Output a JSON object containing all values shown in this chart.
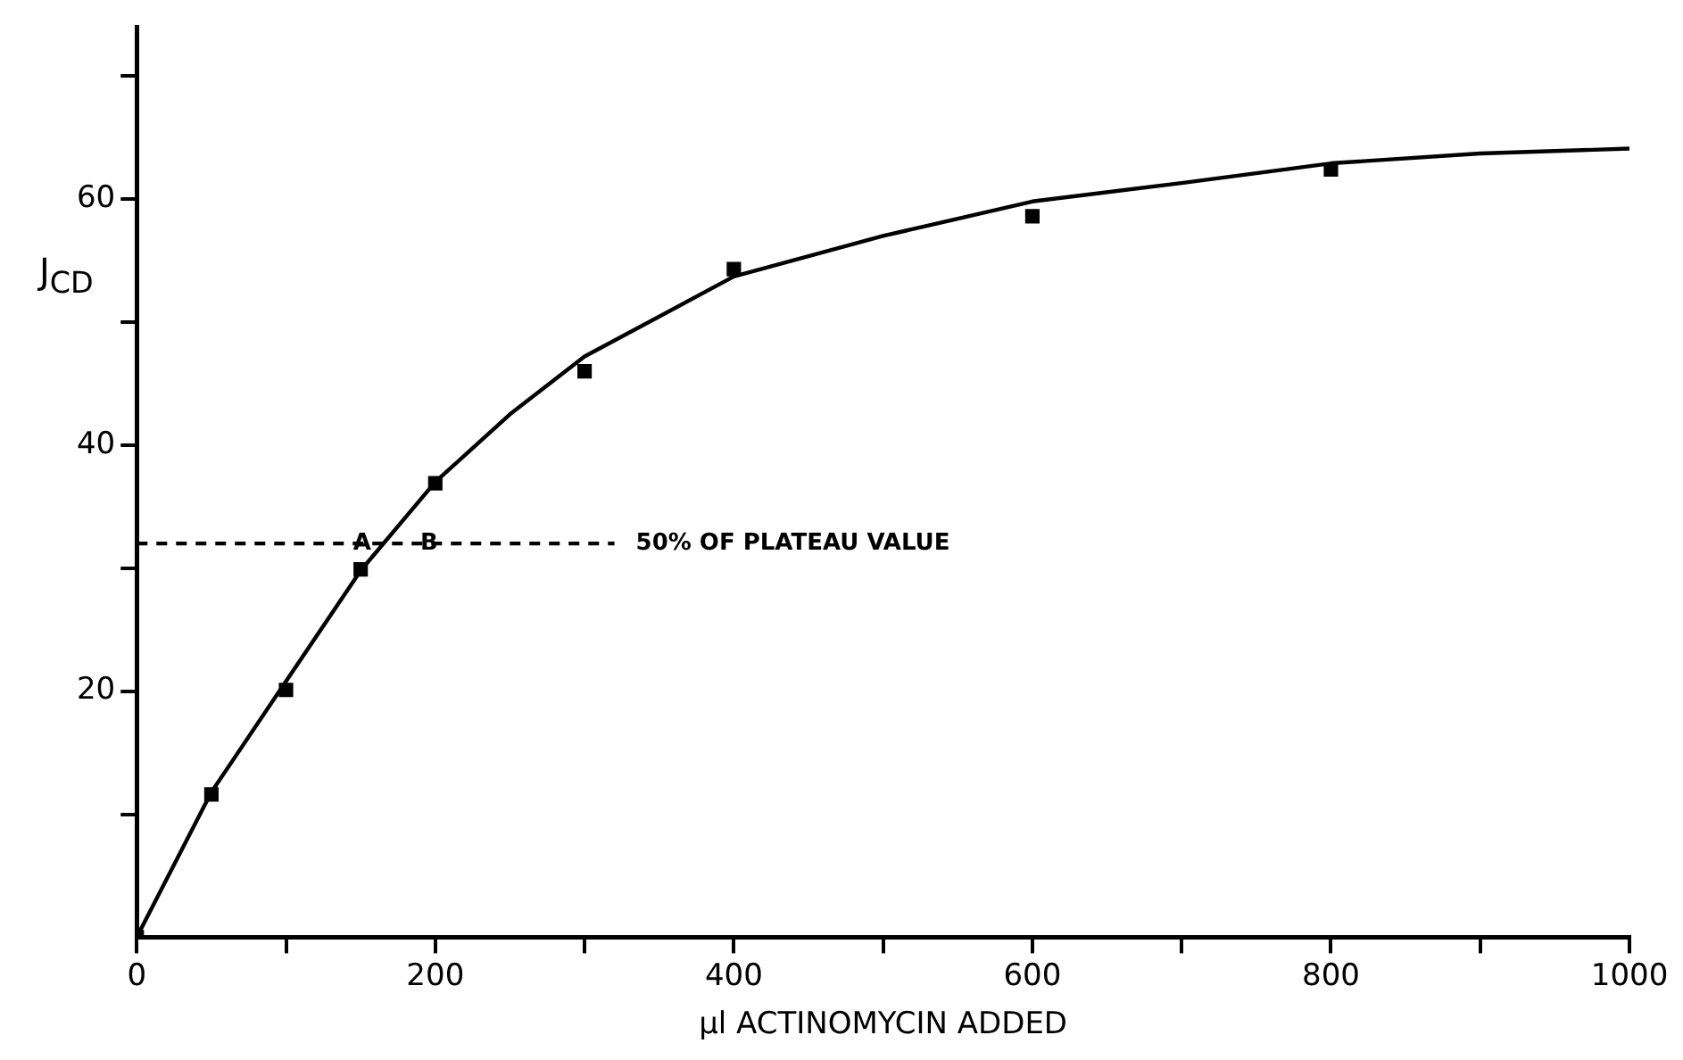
{
  "chart_data": {
    "type": "scatter",
    "xlabel": "µl ACTINOMYCIN ADDED",
    "ylabel": "J$_{CD}$",
    "xlim": [
      0,
      1000
    ],
    "ylim": [
      0,
      74
    ],
    "xticks": [
      0,
      {
        "value": 100,
        "label": null
      },
      200,
      {
        "value": 300,
        "label": null
      },
      400,
      {
        "value": 500,
        "label": null
      },
      600,
      {
        "value": 700,
        "label": null
      },
      800,
      {
        "value": 900,
        "label": null
      },
      1000
    ],
    "yticks": [
      {
        "value": 10,
        "label": null
      },
      20,
      {
        "value": 30,
        "label": null
      },
      40,
      {
        "value": 50,
        "label": null
      },
      60,
      {
        "value": 70,
        "label": null
      }
    ],
    "grid": false,
    "legend": false,
    "series": [
      {
        "marker": "square",
        "color": "#000000",
        "x": [
          0,
          50,
          100,
          150,
          200,
          300,
          400,
          600,
          800
        ],
        "values": [
          0,
          11.6,
          20.1,
          29.9,
          36.9,
          46,
          54.3,
          58.6,
          62.4
        ]
      },
      {
        "type": "line",
        "marker": "none",
        "line_style": "solid",
        "color": "#000000",
        "x": [
          0,
          50,
          100,
          150,
          200,
          250,
          300,
          400,
          500,
          600,
          700,
          800,
          900,
          1000
        ],
        "values": [
          0,
          11.8,
          20.8,
          29.8,
          37,
          42.5,
          47.2,
          53.7,
          57,
          59.8,
          61.3,
          62.9,
          63.7,
          64.1
        ]
      },
      {
        "type": "line",
        "marker": "none",
        "line_style": "dashed",
        "color": "#000000",
        "x": [
          0,
          320
        ],
        "values": [
          32,
          32
        ]
      }
    ],
    "annotations": [
      {
        "text": "50% OF PLATEAU VALUE",
        "x": 320,
        "y": 32
      },
      {
        "text": "A",
        "x": 145,
        "y": 32
      },
      {
        "text": "B",
        "x": 190,
        "y": 32
      }
    ]
  }
}
